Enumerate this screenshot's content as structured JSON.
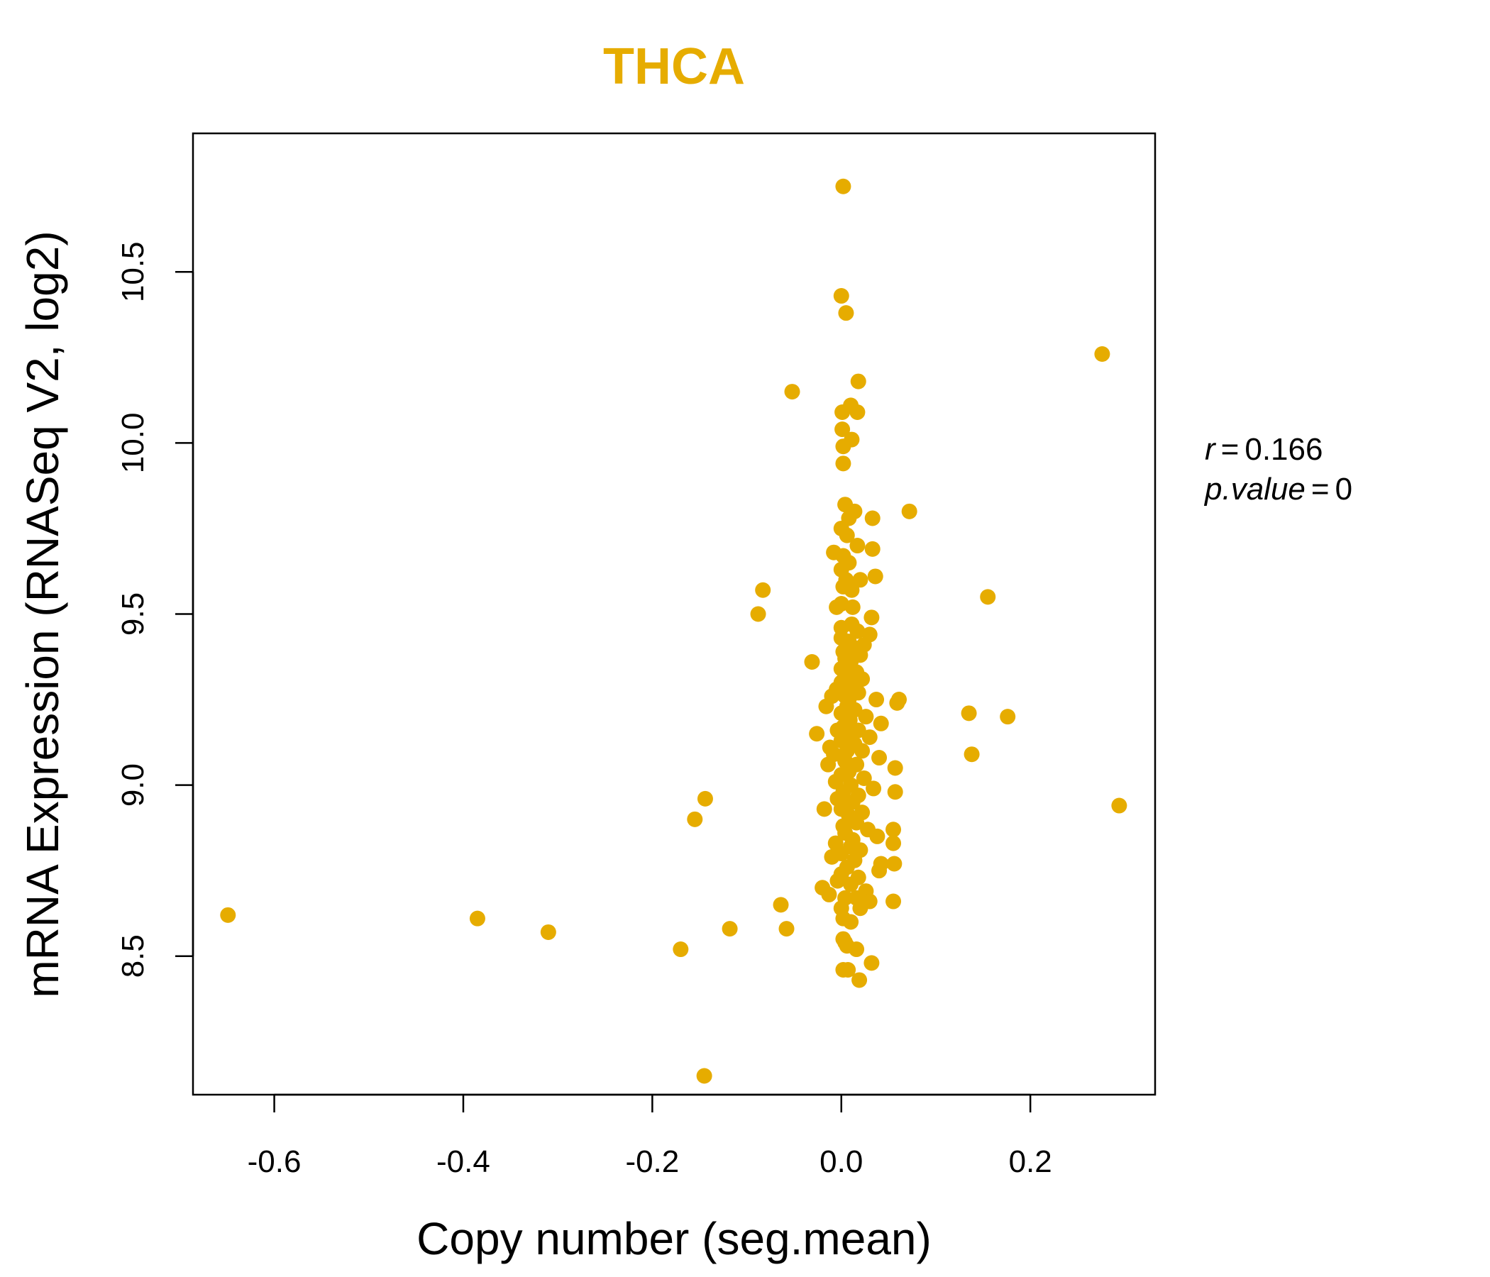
{
  "chart_data": {
    "type": "scatter",
    "title": "THCA",
    "xlabel": "Copy number (seg.mean)",
    "ylabel": "mRNA Expression (RNASeq V2, log2)",
    "xlim": [
      -0.686,
      0.332
    ],
    "ylim": [
      8.095,
      10.905
    ],
    "xticks": [
      -0.6,
      -0.4,
      -0.2,
      0.0,
      0.2
    ],
    "xtick_labels": [
      "-0.6",
      "-0.4",
      "-0.2",
      "0.0",
      "0.2"
    ],
    "yticks": [
      8.5,
      9.0,
      9.5,
      10.0,
      10.5
    ],
    "ytick_labels": [
      "8.5",
      "9.0",
      "9.5",
      "10.0",
      "10.5"
    ],
    "grid": false,
    "legend": "none",
    "point_color": "#E6AC00",
    "annotations": {
      "r_label": "r",
      "r_value": "0.166",
      "p_label": "p.value",
      "p_value": "0"
    },
    "points": [
      [
        0.002,
        10.75
      ],
      [
        0.0,
        10.43
      ],
      [
        0.005,
        10.38
      ],
      [
        0.276,
        10.26
      ],
      [
        0.018,
        10.18
      ],
      [
        -0.052,
        10.15
      ],
      [
        0.01,
        10.11
      ],
      [
        0.017,
        10.09
      ],
      [
        0.001,
        10.09
      ],
      [
        0.001,
        10.04
      ],
      [
        0.011,
        10.01
      ],
      [
        0.002,
        9.99
      ],
      [
        0.002,
        9.94
      ],
      [
        0.004,
        9.82
      ],
      [
        0.033,
        9.78
      ],
      [
        0.072,
        9.8
      ],
      [
        0.014,
        9.8
      ],
      [
        0.008,
        9.78
      ],
      [
        0.0,
        9.75
      ],
      [
        0.006,
        9.73
      ],
      [
        0.017,
        9.7
      ],
      [
        0.033,
        9.69
      ],
      [
        -0.008,
        9.68
      ],
      [
        0.002,
        9.67
      ],
      [
        0.008,
        9.65
      ],
      [
        0.0,
        9.63
      ],
      [
        0.036,
        9.61
      ],
      [
        0.005,
        9.6
      ],
      [
        0.02,
        9.6
      ],
      [
        0.002,
        9.58
      ],
      [
        0.011,
        9.57
      ],
      [
        -0.083,
        9.57
      ],
      [
        0.155,
        9.55
      ],
      [
        0.0,
        9.53
      ],
      [
        -0.005,
        9.52
      ],
      [
        0.012,
        9.52
      ],
      [
        -0.088,
        9.5
      ],
      [
        0.032,
        9.49
      ],
      [
        0.011,
        9.47
      ],
      [
        0.0,
        9.46
      ],
      [
        0.017,
        9.45
      ],
      [
        0.03,
        9.44
      ],
      [
        0.0,
        9.43
      ],
      [
        0.008,
        9.42
      ],
      [
        0.024,
        9.41
      ],
      [
        0.015,
        9.4
      ],
      [
        0.002,
        9.39
      ],
      [
        0.02,
        9.38
      ],
      [
        0.004,
        9.37
      ],
      [
        -0.031,
        9.36
      ],
      [
        0.01,
        9.36
      ],
      [
        0.0,
        9.34
      ],
      [
        0.016,
        9.33
      ],
      [
        0.004,
        9.32
      ],
      [
        0.006,
        9.31
      ],
      [
        0.022,
        9.31
      ],
      [
        0.0,
        9.3
      ],
      [
        0.012,
        9.29
      ],
      [
        -0.005,
        9.28
      ],
      [
        0.018,
        9.27
      ],
      [
        0.004,
        9.26
      ],
      [
        -0.01,
        9.26
      ],
      [
        0.008,
        9.25
      ],
      [
        0.037,
        9.25
      ],
      [
        0.061,
        9.25
      ],
      [
        0.059,
        9.24
      ],
      [
        -0.016,
        9.23
      ],
      [
        0.006,
        9.23
      ],
      [
        0.014,
        9.22
      ],
      [
        0.135,
        9.21
      ],
      [
        0.0,
        9.21
      ],
      [
        0.176,
        9.2
      ],
      [
        0.026,
        9.2
      ],
      [
        0.009,
        9.19
      ],
      [
        0.042,
        9.18
      ],
      [
        0.002,
        9.17
      ],
      [
        0.018,
        9.16
      ],
      [
        -0.004,
        9.16
      ],
      [
        0.011,
        9.15
      ],
      [
        -0.026,
        9.15
      ],
      [
        0.03,
        9.14
      ],
      [
        0.0,
        9.13
      ],
      [
        0.014,
        9.12
      ],
      [
        -0.012,
        9.11
      ],
      [
        0.006,
        9.1
      ],
      [
        0.022,
        9.1
      ],
      [
        -0.008,
        9.09
      ],
      [
        0.138,
        9.09
      ],
      [
        0.04,
        9.08
      ],
      [
        0.004,
        9.07
      ],
      [
        0.016,
        9.06
      ],
      [
        -0.014,
        9.06
      ],
      [
        0.057,
        9.05
      ],
      [
        0.008,
        9.04
      ],
      [
        0.0,
        9.03
      ],
      [
        0.024,
        9.02
      ],
      [
        -0.006,
        9.01
      ],
      [
        0.01,
        9.0
      ],
      [
        0.034,
        8.99
      ],
      [
        0.002,
        8.98
      ],
      [
        0.057,
        8.98
      ],
      [
        0.018,
        8.97
      ],
      [
        -0.004,
        8.96
      ],
      [
        -0.144,
        8.96
      ],
      [
        0.012,
        8.95
      ],
      [
        0.006,
        8.94
      ],
      [
        0.294,
        8.94
      ],
      [
        0.0,
        8.93
      ],
      [
        -0.018,
        8.93
      ],
      [
        0.022,
        8.92
      ],
      [
        0.008,
        8.91
      ],
      [
        -0.155,
        8.9
      ],
      [
        0.016,
        8.89
      ],
      [
        0.002,
        8.88
      ],
      [
        0.055,
        8.87
      ],
      [
        0.028,
        8.87
      ],
      [
        0.004,
        8.86
      ],
      [
        0.038,
        8.85
      ],
      [
        0.012,
        8.84
      ],
      [
        -0.006,
        8.83
      ],
      [
        0.055,
        8.83
      ],
      [
        0.01,
        8.82
      ],
      [
        0.02,
        8.81
      ],
      [
        0.0,
        8.8
      ],
      [
        -0.01,
        8.79
      ],
      [
        0.014,
        8.78
      ],
      [
        0.042,
        8.77
      ],
      [
        0.056,
        8.77
      ],
      [
        0.006,
        8.76
      ],
      [
        0.04,
        8.75
      ],
      [
        0.0,
        8.74
      ],
      [
        0.018,
        8.73
      ],
      [
        -0.004,
        8.72
      ],
      [
        0.01,
        8.71
      ],
      [
        -0.02,
        8.7
      ],
      [
        0.026,
        8.69
      ],
      [
        -0.013,
        8.68
      ],
      [
        0.004,
        8.67
      ],
      [
        0.016,
        8.67
      ],
      [
        0.055,
        8.66
      ],
      [
        0.03,
        8.66
      ],
      [
        -0.064,
        8.65
      ],
      [
        0.0,
        8.64
      ],
      [
        0.02,
        8.64
      ],
      [
        -0.649,
        8.62
      ],
      [
        -0.385,
        8.61
      ],
      [
        0.002,
        8.61
      ],
      [
        0.01,
        8.6
      ],
      [
        -0.118,
        8.58
      ],
      [
        -0.058,
        8.58
      ],
      [
        -0.31,
        8.57
      ],
      [
        0.002,
        8.55
      ],
      [
        0.004,
        8.54
      ],
      [
        0.006,
        8.53
      ],
      [
        -0.17,
        8.52
      ],
      [
        0.016,
        8.52
      ],
      [
        0.032,
        8.48
      ],
      [
        0.002,
        8.46
      ],
      [
        0.007,
        8.46
      ],
      [
        0.019,
        8.43
      ],
      [
        -0.145,
        8.15
      ]
    ]
  }
}
